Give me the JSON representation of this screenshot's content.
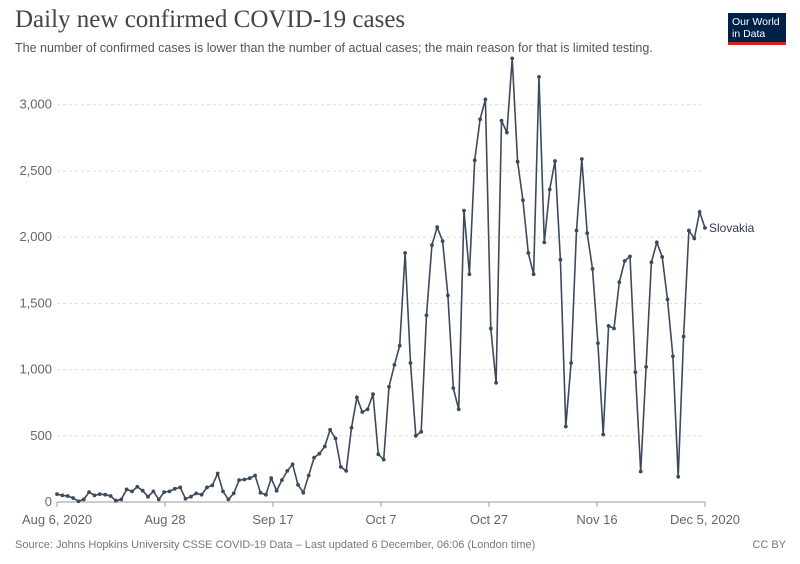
{
  "header": {
    "title": "Daily new confirmed COVID-19 cases",
    "subtitle": "The number of confirmed cases is lower than the number of actual cases; the main reason for that is limited testing."
  },
  "logo": {
    "line1": "Our World",
    "line2": "in Data",
    "bg_color": "#002147",
    "accent_color": "#ce261e"
  },
  "footer": {
    "source": "Source: Johns Hopkins University CSSE COVID-19 Data – Last updated 6 December, 06:06 (London time)",
    "license": "CC BY"
  },
  "chart_data": {
    "type": "line",
    "title": "Daily new confirmed COVID-19 cases",
    "x_start": "2020-08-06",
    "x_end": "2020-12-05",
    "x_tick_labels": [
      "Aug 6, 2020",
      "Aug 28",
      "Sep 17",
      "Oct 7",
      "Oct 27",
      "Nov 16",
      "Dec 5, 2020"
    ],
    "y_ticks": [
      0,
      500,
      1000,
      1500,
      2000,
      2500,
      3000
    ],
    "y_tick_labels": [
      "0",
      "500",
      "1,000",
      "1,500",
      "2,000",
      "2,500",
      "3,000"
    ],
    "ylim": [
      0,
      3300
    ],
    "grid": true,
    "line_color": "#3c4a5d",
    "series": [
      {
        "name": "Slovakia",
        "x": [
          "2020-08-06",
          "2020-08-07",
          "2020-08-08",
          "2020-08-09",
          "2020-08-10",
          "2020-08-11",
          "2020-08-12",
          "2020-08-13",
          "2020-08-14",
          "2020-08-15",
          "2020-08-16",
          "2020-08-17",
          "2020-08-18",
          "2020-08-19",
          "2020-08-20",
          "2020-08-21",
          "2020-08-22",
          "2020-08-23",
          "2020-08-24",
          "2020-08-25",
          "2020-08-26",
          "2020-08-27",
          "2020-08-28",
          "2020-08-29",
          "2020-08-30",
          "2020-08-31",
          "2020-09-01",
          "2020-09-02",
          "2020-09-03",
          "2020-09-04",
          "2020-09-05",
          "2020-09-06",
          "2020-09-07",
          "2020-09-08",
          "2020-09-09",
          "2020-09-10",
          "2020-09-11",
          "2020-09-12",
          "2020-09-13",
          "2020-09-14",
          "2020-09-15",
          "2020-09-16",
          "2020-09-17",
          "2020-09-18",
          "2020-09-19",
          "2020-09-20",
          "2020-09-21",
          "2020-09-22",
          "2020-09-23",
          "2020-09-24",
          "2020-09-25",
          "2020-09-26",
          "2020-09-27",
          "2020-09-28",
          "2020-09-29",
          "2020-09-30",
          "2020-10-01",
          "2020-10-02",
          "2020-10-03",
          "2020-10-04",
          "2020-10-05",
          "2020-10-06",
          "2020-10-07",
          "2020-10-08",
          "2020-10-09",
          "2020-10-10",
          "2020-10-11",
          "2020-10-12",
          "2020-10-13",
          "2020-10-14",
          "2020-10-15",
          "2020-10-16",
          "2020-10-17",
          "2020-10-18",
          "2020-10-19",
          "2020-10-20",
          "2020-10-21",
          "2020-10-22",
          "2020-10-23",
          "2020-10-24",
          "2020-10-25",
          "2020-10-26",
          "2020-10-27",
          "2020-10-28",
          "2020-10-29",
          "2020-10-30",
          "2020-10-31",
          "2020-11-01",
          "2020-11-02",
          "2020-11-03",
          "2020-11-04",
          "2020-11-05",
          "2020-11-06",
          "2020-11-07",
          "2020-11-08",
          "2020-11-09",
          "2020-11-10",
          "2020-11-11",
          "2020-11-12",
          "2020-11-13",
          "2020-11-14",
          "2020-11-15",
          "2020-11-16",
          "2020-11-17",
          "2020-11-18",
          "2020-11-19",
          "2020-11-20",
          "2020-11-21",
          "2020-11-22",
          "2020-11-23",
          "2020-11-24",
          "2020-11-25",
          "2020-11-26",
          "2020-11-27",
          "2020-11-28",
          "2020-11-29",
          "2020-11-30",
          "2020-12-01",
          "2020-12-02",
          "2020-12-03",
          "2020-12-04",
          "2020-12-05"
        ],
        "values": [
          60,
          50,
          45,
          30,
          5,
          20,
          75,
          50,
          60,
          55,
          45,
          10,
          20,
          95,
          80,
          115,
          85,
          40,
          80,
          20,
          75,
          80,
          100,
          110,
          25,
          40,
          65,
          55,
          110,
          125,
          215,
          80,
          20,
          65,
          165,
          170,
          180,
          200,
          70,
          55,
          180,
          85,
          165,
          235,
          285,
          130,
          70,
          200,
          335,
          365,
          420,
          545,
          480,
          265,
          235,
          560,
          790,
          680,
          700,
          815,
          360,
          320,
          870,
          1035,
          1180,
          1880,
          1050,
          500,
          530,
          1410,
          1940,
          2075,
          1970,
          1560,
          860,
          700,
          2200,
          1720,
          2580,
          2890,
          3040,
          1310,
          900,
          2880,
          2790,
          3350,
          2570,
          2280,
          1880,
          1720,
          3210,
          1960,
          2360,
          2575,
          1830,
          570,
          1050,
          2050,
          2590,
          2030,
          1760,
          1200,
          510,
          1330,
          1310,
          1660,
          1820,
          1855,
          980,
          230,
          1020,
          1810,
          1960,
          1850,
          1530,
          1100,
          190,
          1250,
          2050,
          1990,
          2190,
          2070
        ]
      }
    ]
  }
}
